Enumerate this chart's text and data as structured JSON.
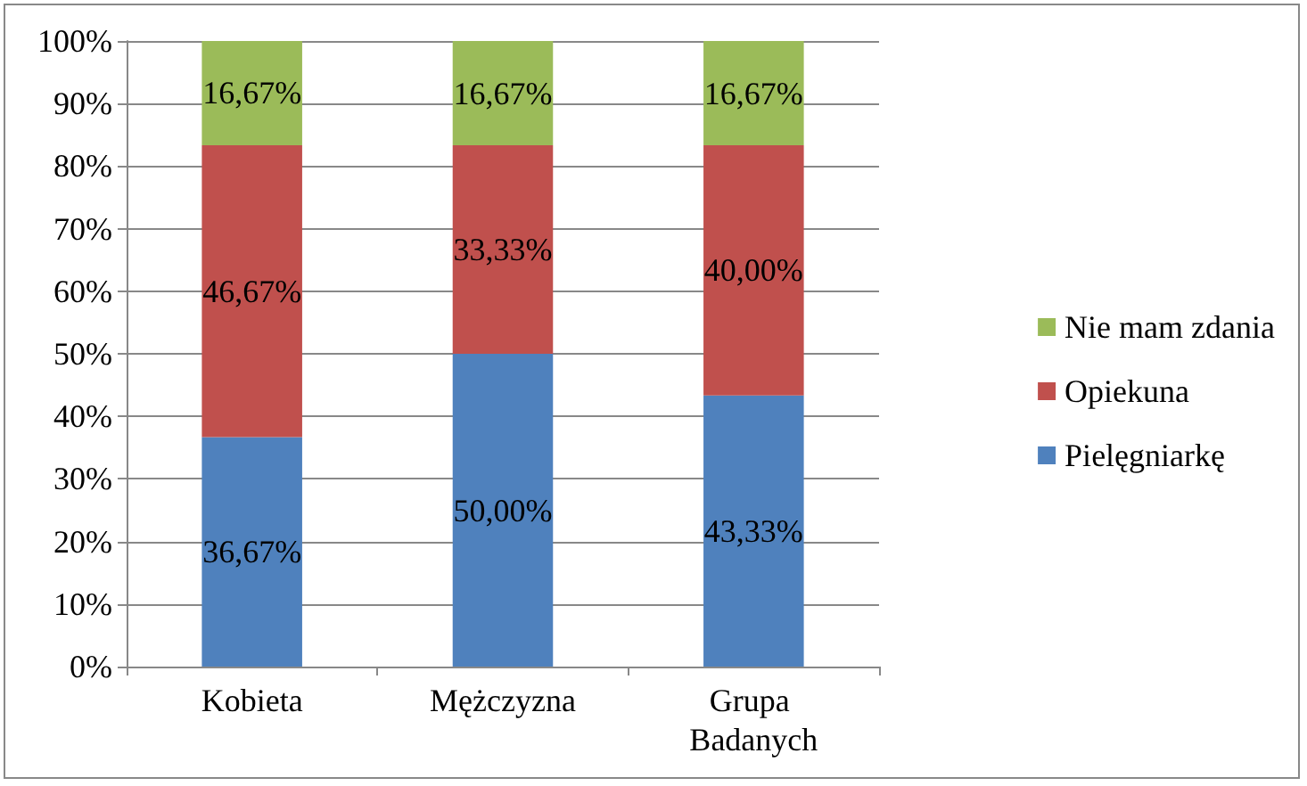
{
  "chart_data": {
    "type": "bar",
    "stacked": true,
    "categories": [
      "Kobieta",
      "Mężczyzna",
      "Grupa Badanych"
    ],
    "series": [
      {
        "name": "Pielęgniarkę",
        "color": "#4f81bd",
        "values": [
          36.67,
          50.0,
          43.33
        ],
        "value_labels": [
          "36,67%",
          "50,00%",
          "43,33%"
        ]
      },
      {
        "name": "Opiekuna",
        "color": "#c0504d",
        "values": [
          46.67,
          33.33,
          40.0
        ],
        "value_labels": [
          "46,67%",
          "33,33%",
          "40,00%"
        ]
      },
      {
        "name": "Nie mam zdania",
        "color": "#9bbb59",
        "values": [
          16.67,
          16.67,
          16.67
        ],
        "value_labels": [
          "16,67%",
          "16,67%",
          "16,67%"
        ]
      }
    ],
    "ylim": [
      0,
      100
    ],
    "yticks": [
      {
        "value": 0,
        "label": "0%"
      },
      {
        "value": 10,
        "label": "10%"
      },
      {
        "value": 20,
        "label": "20%"
      },
      {
        "value": 30,
        "label": "30%"
      },
      {
        "value": 40,
        "label": "40%"
      },
      {
        "value": 50,
        "label": "50%"
      },
      {
        "value": 60,
        "label": "60%"
      },
      {
        "value": 70,
        "label": "70%"
      },
      {
        "value": 80,
        "label": "80%"
      },
      {
        "value": 90,
        "label": "90%"
      },
      {
        "value": 100,
        "label": "100%"
      }
    ],
    "grid": "y",
    "legend": "right"
  }
}
